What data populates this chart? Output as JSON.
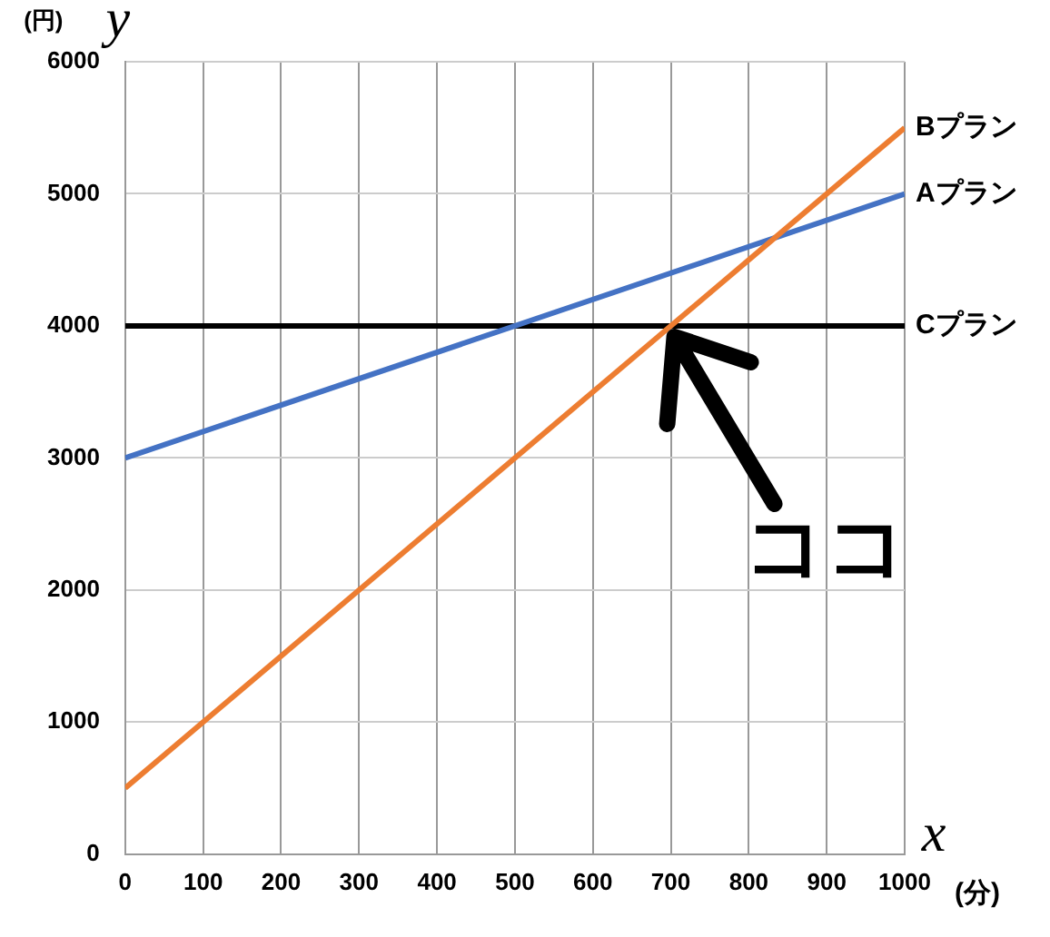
{
  "chart_data": {
    "type": "line",
    "xlabel": "(分)",
    "ylabel": "(円)",
    "annotations": [
      "y",
      "x",
      {
        "text": "ココ",
        "x": 700,
        "y": 4000
      }
    ],
    "xlim": [
      0,
      1000
    ],
    "xticks": [
      0,
      100,
      200,
      300,
      400,
      500,
      600,
      700,
      800,
      900,
      1000
    ],
    "ylim": [
      0,
      6000
    ],
    "yticks": [
      0,
      1000,
      2000,
      3000,
      4000,
      5000,
      6000
    ],
    "x": [
      0,
      1000
    ],
    "grid": true,
    "legend": false,
    "marker": "none",
    "line_style": "solid",
    "series": [
      {
        "name": "Bプラン",
        "color": "#ed7d31",
        "values": [
          500,
          5500
        ]
      },
      {
        "name": "Aプラン",
        "color": "#4472c4",
        "values": [
          3000,
          5000
        ]
      },
      {
        "name": "Cプラン",
        "color": "#000000",
        "values": [
          4000,
          4000
        ]
      }
    ]
  }
}
